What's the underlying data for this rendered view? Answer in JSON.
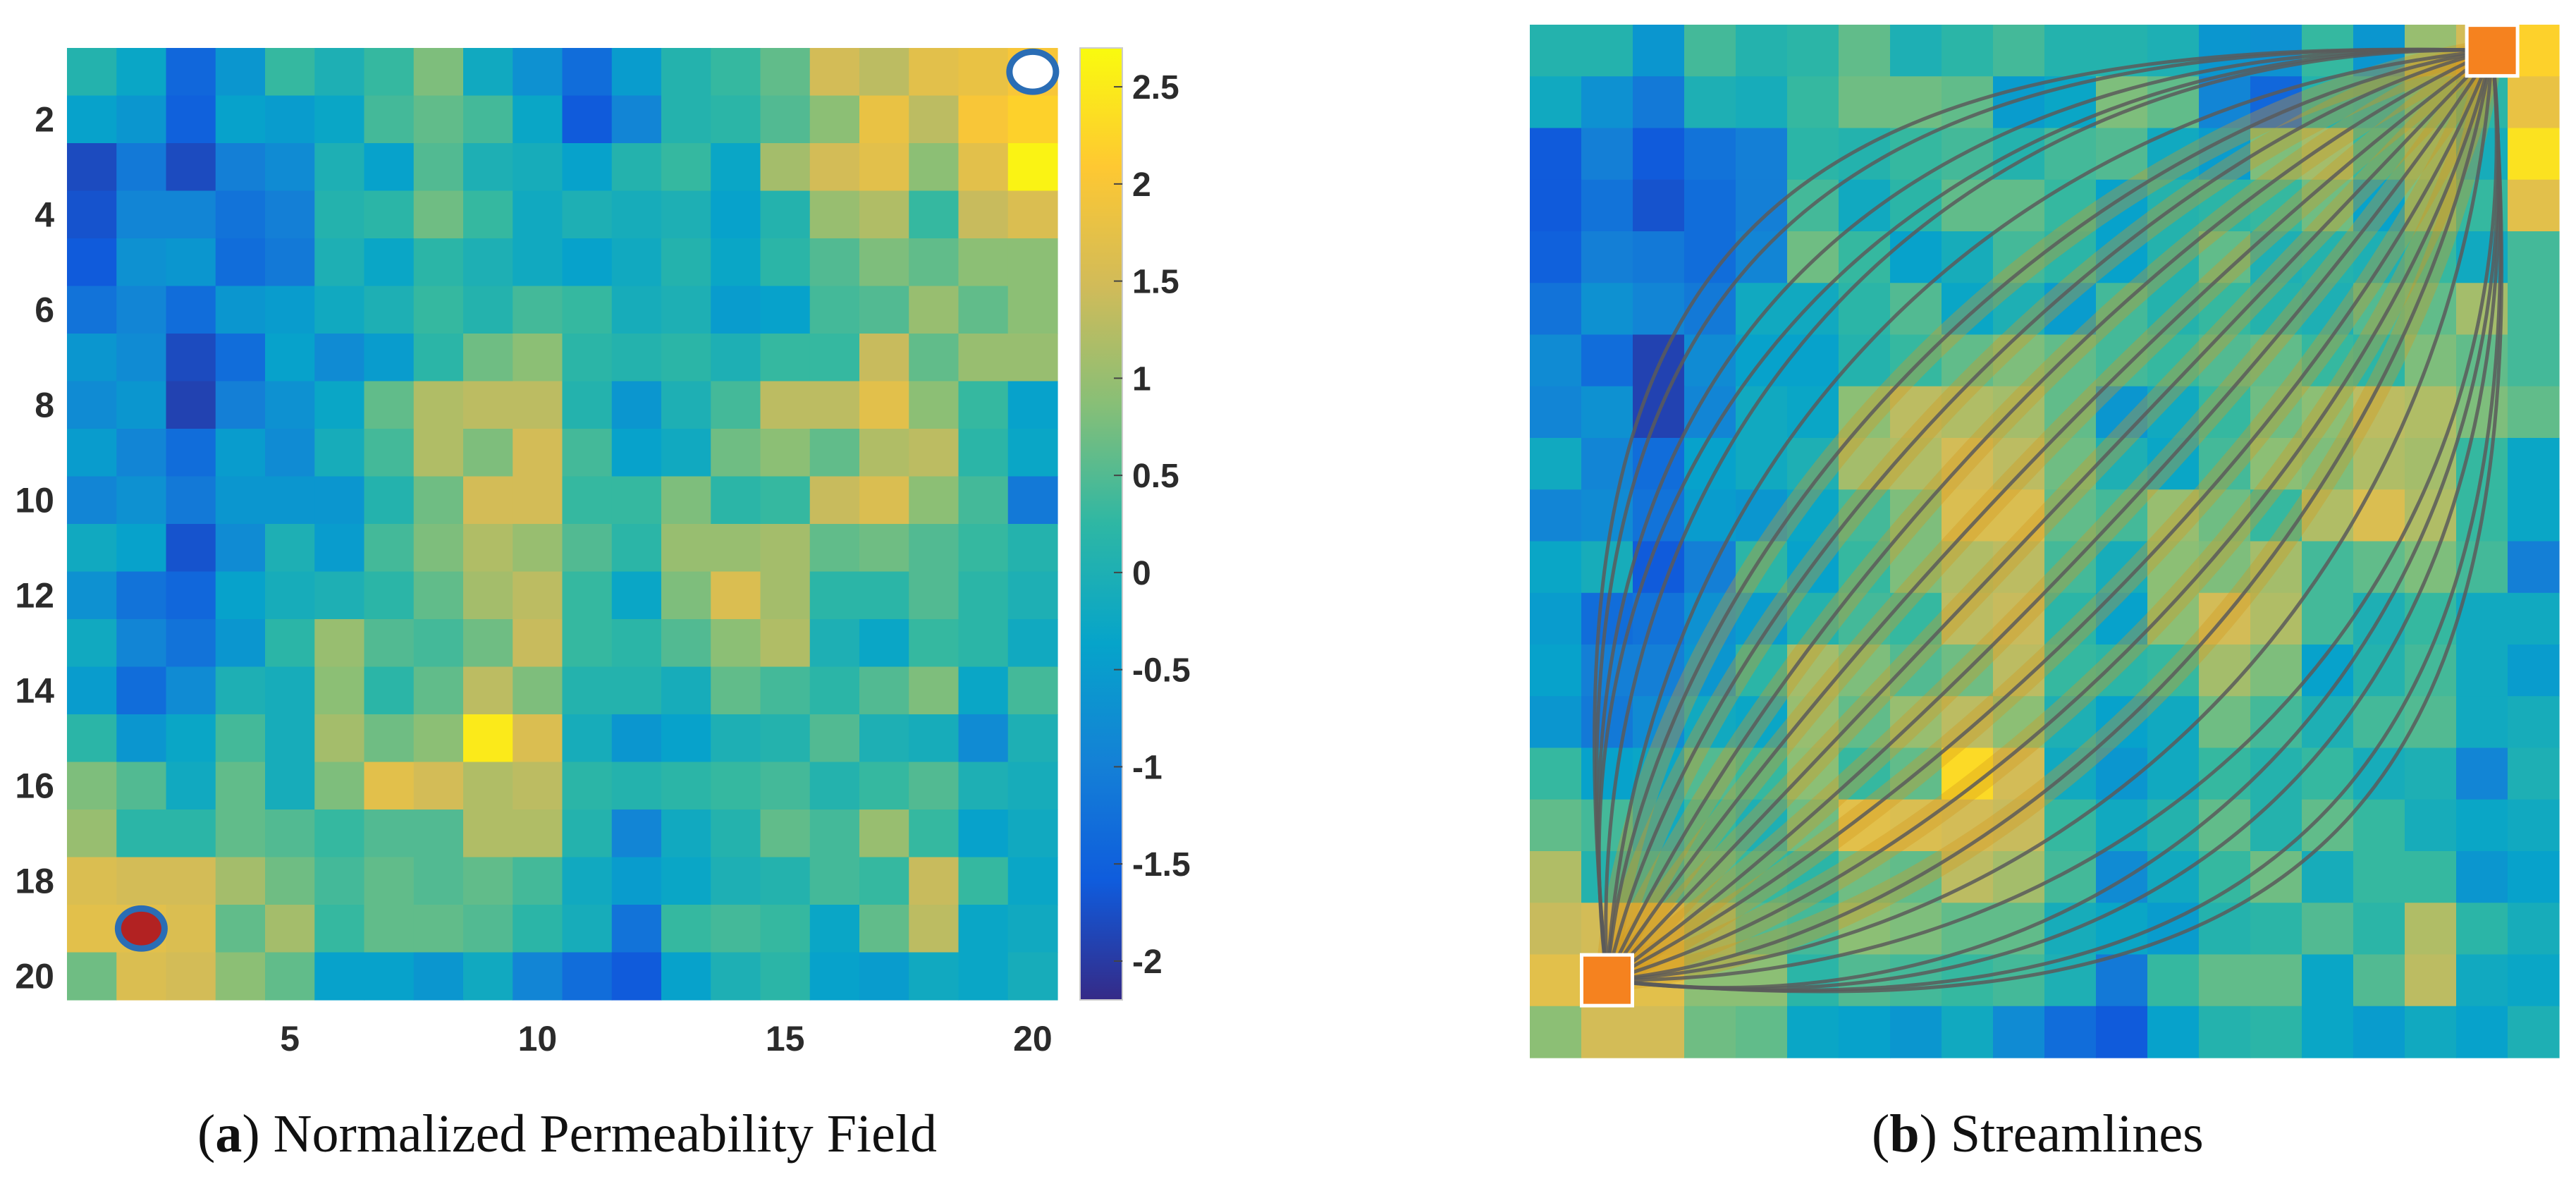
{
  "chart_data": [
    {
      "type": "heatmap",
      "title": "Normalized Permeability Field",
      "caption_letter": "a",
      "rows": 20,
      "cols": 20,
      "x_ticks": [
        "5",
        "10",
        "15",
        "20"
      ],
      "y_ticks": [
        "2",
        "4",
        "6",
        "8",
        "10",
        "12",
        "14",
        "16",
        "18",
        "20"
      ],
      "colorbar_ticks": [
        "2.5",
        "2",
        "1.5",
        "1",
        "0.5",
        "0",
        "-0.5",
        "-1",
        "-1.5",
        "-2"
      ],
      "colorbar_range": [
        -2.2,
        2.7
      ],
      "colormap": [
        "#352a87",
        "#0f5cdd",
        "#1481d6",
        "#06a4ca",
        "#2eb7a4",
        "#87bf77",
        "#d1bb59",
        "#fec832",
        "#f9fb0e"
      ],
      "markers": [
        {
          "name": "producer-well",
          "col": 20,
          "row": 1,
          "fill": "#ffffff",
          "stroke": "#2a6db5"
        },
        {
          "name": "injector-well",
          "col": 2,
          "row": 19,
          "fill": "#b22222",
          "stroke": "#2a6db5"
        }
      ],
      "values": [
        [
          0.1,
          -0.3,
          -1.4,
          -0.6,
          0.3,
          0.0,
          0.3,
          0.8,
          -0.2,
          -0.7,
          -1.3,
          -0.5,
          0.1,
          0.3,
          0.6,
          1.5,
          1.3,
          1.7,
          1.8,
          2.0
        ],
        [
          -0.4,
          -0.6,
          -1.5,
          -0.4,
          -0.5,
          -0.3,
          0.4,
          0.6,
          0.4,
          -0.3,
          -1.6,
          -0.9,
          0.1,
          0.2,
          0.5,
          0.9,
          1.8,
          1.3,
          2.0,
          2.2
        ],
        [
          -1.8,
          -1.1,
          -1.8,
          -1.0,
          -0.8,
          0.0,
          -0.4,
          0.5,
          0.0,
          -0.1,
          -0.4,
          0.1,
          0.3,
          -0.3,
          1.1,
          1.5,
          1.7,
          0.9,
          1.7,
          2.6
        ],
        [
          -1.7,
          -0.9,
          -0.9,
          -1.2,
          -1.0,
          0.1,
          0.2,
          0.7,
          0.3,
          -0.2,
          0.0,
          -0.1,
          0.0,
          -0.4,
          0.1,
          1.0,
          1.2,
          0.3,
          1.4,
          1.6
        ],
        [
          -1.6,
          -0.7,
          -0.6,
          -1.3,
          -1.1,
          0.0,
          -0.3,
          0.2,
          0.0,
          -0.2,
          -0.4,
          -0.2,
          0.1,
          -0.3,
          0.2,
          0.5,
          0.8,
          0.6,
          0.9,
          0.9
        ],
        [
          -1.2,
          -0.9,
          -1.3,
          -0.6,
          -0.5,
          -0.2,
          0.0,
          0.3,
          0.1,
          0.4,
          0.3,
          -0.1,
          0.0,
          -0.5,
          -0.4,
          0.4,
          0.5,
          1.0,
          0.6,
          0.9
        ],
        [
          -0.6,
          -0.8,
          -1.8,
          -1.3,
          -0.4,
          -0.8,
          -0.5,
          0.2,
          0.7,
          0.9,
          0.2,
          0.1,
          0.2,
          0.0,
          0.3,
          0.3,
          1.4,
          0.6,
          1.0,
          1.0
        ],
        [
          -0.8,
          -0.6,
          -1.9,
          -1.0,
          -0.7,
          -0.3,
          0.6,
          1.2,
          1.3,
          1.3,
          0.1,
          -0.6,
          0.0,
          0.4,
          1.3,
          1.3,
          1.7,
          0.9,
          0.3,
          -0.4
        ],
        [
          -0.5,
          -0.9,
          -1.3,
          -0.5,
          -0.8,
          -0.1,
          0.4,
          1.2,
          0.8,
          1.5,
          0.4,
          -0.4,
          -0.2,
          0.7,
          0.9,
          0.6,
          1.2,
          1.3,
          0.2,
          -0.3
        ],
        [
          -0.9,
          -0.7,
          -1.1,
          -0.6,
          -0.6,
          -0.6,
          0.1,
          0.7,
          1.5,
          1.5,
          0.3,
          0.3,
          0.8,
          0.2,
          0.3,
          1.4,
          1.6,
          0.9,
          0.4,
          -1.1
        ],
        [
          -0.2,
          -0.4,
          -1.7,
          -0.8,
          0.0,
          -0.5,
          0.4,
          0.8,
          1.2,
          1.0,
          0.5,
          0.2,
          1.0,
          1.0,
          1.1,
          0.6,
          0.7,
          0.5,
          0.3,
          0.1
        ],
        [
          -0.7,
          -1.2,
          -1.4,
          -0.4,
          -0.1,
          0.0,
          0.2,
          0.6,
          1.1,
          1.3,
          0.3,
          -0.3,
          0.8,
          1.6,
          1.1,
          0.2,
          0.2,
          0.5,
          0.2,
          0.0
        ],
        [
          -0.2,
          -0.9,
          -1.2,
          -0.6,
          0.2,
          1.0,
          0.5,
          0.4,
          0.7,
          1.4,
          0.3,
          0.2,
          0.5,
          0.9,
          1.2,
          0.0,
          -0.3,
          0.3,
          0.2,
          -0.2
        ],
        [
          -0.5,
          -1.3,
          -0.8,
          0.0,
          -0.1,
          0.9,
          0.2,
          0.6,
          1.3,
          0.8,
          0.1,
          0.1,
          -0.1,
          0.6,
          0.4,
          0.2,
          0.5,
          0.8,
          -0.3,
          0.4
        ],
        [
          0.2,
          -0.6,
          -0.3,
          0.4,
          -0.1,
          1.1,
          0.7,
          0.9,
          2.5,
          1.6,
          -0.1,
          -0.6,
          -0.4,
          0.0,
          0.1,
          0.5,
          0.0,
          -0.1,
          -0.8,
          0.0
        ],
        [
          0.8,
          0.5,
          -0.2,
          0.6,
          -0.1,
          0.8,
          1.7,
          1.5,
          1.2,
          1.3,
          0.2,
          0.1,
          0.2,
          0.3,
          0.4,
          0.1,
          0.3,
          0.5,
          0.0,
          -0.1
        ],
        [
          1.0,
          0.2,
          0.2,
          0.6,
          0.5,
          0.3,
          0.5,
          0.5,
          1.2,
          1.2,
          0.1,
          -0.9,
          -0.2,
          0.1,
          0.6,
          0.4,
          1.0,
          0.3,
          -0.4,
          -0.2
        ],
        [
          1.6,
          1.5,
          1.5,
          1.1,
          0.7,
          0.4,
          0.6,
          0.5,
          0.6,
          0.4,
          -0.2,
          -0.5,
          -0.3,
          0.0,
          0.1,
          0.4,
          0.3,
          1.4,
          0.3,
          -0.3
        ],
        [
          1.7,
          1.7,
          1.6,
          0.6,
          1.1,
          0.3,
          0.6,
          0.6,
          0.5,
          0.2,
          -0.1,
          -1.2,
          0.3,
          0.4,
          0.3,
          -0.3,
          0.6,
          1.3,
          -0.3,
          -0.2
        ],
        [
          0.7,
          1.6,
          1.5,
          0.9,
          0.6,
          -0.4,
          -0.4,
          -0.6,
          -0.2,
          -0.9,
          -1.3,
          -1.6,
          -0.4,
          0.0,
          0.2,
          -0.4,
          -0.5,
          -0.2,
          -0.3,
          -0.1
        ]
      ]
    },
    {
      "type": "heatmap",
      "title": "Streamlines",
      "caption_letter": "b",
      "rows": 20,
      "cols": 20,
      "line_color": "#5a5a5a",
      "highlight_color": "#d4981c",
      "well_color": "#f5821f",
      "values": [
        [
          0.1,
          0.1,
          -0.6,
          0.4,
          0.1,
          0.2,
          0.6,
          0.0,
          0.2,
          0.4,
          0.1,
          0.1,
          0.0,
          -0.6,
          -0.7,
          0.3,
          -0.6,
          1.0,
          1.5,
          2.2
        ],
        [
          -0.2,
          -0.7,
          -1.1,
          0.0,
          -0.1,
          0.3,
          0.7,
          0.7,
          0.6,
          -0.5,
          -0.3,
          0.8,
          0.6,
          -0.9,
          -1.4,
          0.1,
          0.0,
          0.6,
          0.2,
          1.8
        ],
        [
          -1.6,
          -1.0,
          -1.6,
          -1.2,
          -1.0,
          0.2,
          0.1,
          0.3,
          0.4,
          0.1,
          0.4,
          0.5,
          -0.2,
          -0.5,
          0.8,
          1.1,
          0.3,
          0.9,
          -0.1,
          2.4
        ],
        [
          -1.6,
          -1.2,
          -1.7,
          -1.3,
          -1.0,
          0.4,
          -0.2,
          0.2,
          0.6,
          0.6,
          0.3,
          -0.4,
          0.1,
          0.2,
          0.3,
          0.7,
          -0.4,
          0.8,
          0.3,
          1.7
        ],
        [
          -1.5,
          -1.0,
          -1.1,
          -1.3,
          -0.9,
          0.7,
          0.3,
          -0.4,
          -0.1,
          0.4,
          0.2,
          -0.4,
          0.1,
          0.6,
          0.0,
          0.1,
          0.0,
          0.3,
          -0.2,
          0.4
        ],
        [
          -1.2,
          -0.7,
          -0.9,
          -1.1,
          -0.2,
          -0.2,
          0.2,
          0.5,
          -0.3,
          0.0,
          -0.5,
          0.4,
          0.1,
          0.3,
          0.1,
          0.0,
          0.5,
          0.6,
          1.1,
          0.4
        ],
        [
          -0.8,
          -1.3,
          -1.9,
          -0.8,
          -0.4,
          -0.4,
          0.1,
          0.3,
          0.6,
          0.8,
          0.6,
          0.4,
          0.3,
          0.5,
          0.6,
          0.3,
          0.2,
          0.8,
          0.6,
          0.4
        ],
        [
          -0.9,
          -0.7,
          -1.9,
          -0.9,
          -0.2,
          -0.3,
          0.9,
          1.3,
          1.2,
          1.1,
          0.6,
          -0.6,
          -0.2,
          0.3,
          0.7,
          0.9,
          1.3,
          1.2,
          0.8,
          0.6
        ],
        [
          -0.2,
          -0.9,
          -1.3,
          -0.4,
          -0.2,
          0.0,
          1.1,
          1.2,
          1.5,
          1.3,
          0.7,
          0.0,
          -0.3,
          0.4,
          0.9,
          0.8,
          1.2,
          1.1,
          0.3,
          -0.3
        ],
        [
          -0.9,
          -0.8,
          -1.2,
          -0.5,
          -0.6,
          -0.3,
          0.4,
          0.8,
          1.6,
          1.6,
          0.6,
          0.4,
          1.0,
          0.7,
          0.3,
          1.2,
          1.6,
          1.2,
          0.3,
          -0.3
        ],
        [
          -0.3,
          -0.1,
          -1.6,
          -1.0,
          0.2,
          -0.4,
          0.3,
          0.8,
          1.2,
          1.3,
          0.4,
          -0.1,
          0.9,
          0.8,
          1.1,
          0.4,
          0.6,
          0.8,
          0.4,
          -1.0
        ],
        [
          -0.5,
          -1.3,
          -1.2,
          -0.7,
          -0.5,
          0.1,
          0.4,
          0.3,
          1.3,
          1.4,
          0.2,
          -0.4,
          0.9,
          1.5,
          1.2,
          0.4,
          0.0,
          0.3,
          -0.2,
          -0.2
        ],
        [
          -0.4,
          -1.0,
          -1.0,
          -0.6,
          0.2,
          1.1,
          0.8,
          0.5,
          0.7,
          1.3,
          0.3,
          0.2,
          0.3,
          1.1,
          0.8,
          -0.4,
          0.1,
          0.4,
          -0.2,
          -0.5
        ],
        [
          -0.6,
          -1.1,
          -0.8,
          -0.2,
          -0.3,
          1.0,
          0.6,
          1.0,
          1.3,
          0.9,
          0.0,
          -0.4,
          -0.2,
          0.7,
          0.4,
          0.0,
          0.4,
          0.5,
          -0.2,
          -0.1
        ],
        [
          0.3,
          -0.4,
          -0.3,
          0.5,
          0.3,
          0.9,
          0.3,
          0.6,
          2.3,
          1.5,
          -0.2,
          -0.6,
          -0.2,
          0.3,
          0.1,
          0.3,
          -0.1,
          0.0,
          -0.9,
          0.0
        ],
        [
          0.6,
          0.4,
          -0.2,
          0.3,
          0.0,
          0.7,
          1.7,
          1.6,
          1.5,
          1.4,
          0.3,
          -0.2,
          0.1,
          0.6,
          0.1,
          0.6,
          0.3,
          -0.1,
          -0.3,
          -0.2
        ],
        [
          1.2,
          0.1,
          0.1,
          0.5,
          0.3,
          0.2,
          0.7,
          0.6,
          1.3,
          1.1,
          0.4,
          -0.8,
          -0.2,
          0.3,
          0.7,
          -0.1,
          0.3,
          0.3,
          -0.6,
          -0.4
        ],
        [
          1.4,
          1.5,
          1.6,
          1.0,
          0.5,
          0.4,
          0.9,
          0.8,
          0.6,
          0.6,
          -0.1,
          -0.3,
          -0.5,
          0.1,
          0.2,
          0.5,
          0.2,
          1.2,
          0.2,
          -0.1
        ],
        [
          1.7,
          1.8,
          1.7,
          0.9,
          0.9,
          0.2,
          0.5,
          0.4,
          0.3,
          0.4,
          0.0,
          -1.1,
          0.3,
          0.6,
          0.6,
          -0.3,
          0.5,
          1.3,
          -0.2,
          -0.3
        ],
        [
          0.9,
          1.5,
          1.5,
          0.7,
          0.6,
          -0.3,
          -0.4,
          -0.6,
          -0.2,
          -0.8,
          -1.3,
          -1.6,
          -0.4,
          0.1,
          0.2,
          -0.3,
          -0.5,
          -0.2,
          -0.4,
          0.0
        ]
      ]
    }
  ]
}
